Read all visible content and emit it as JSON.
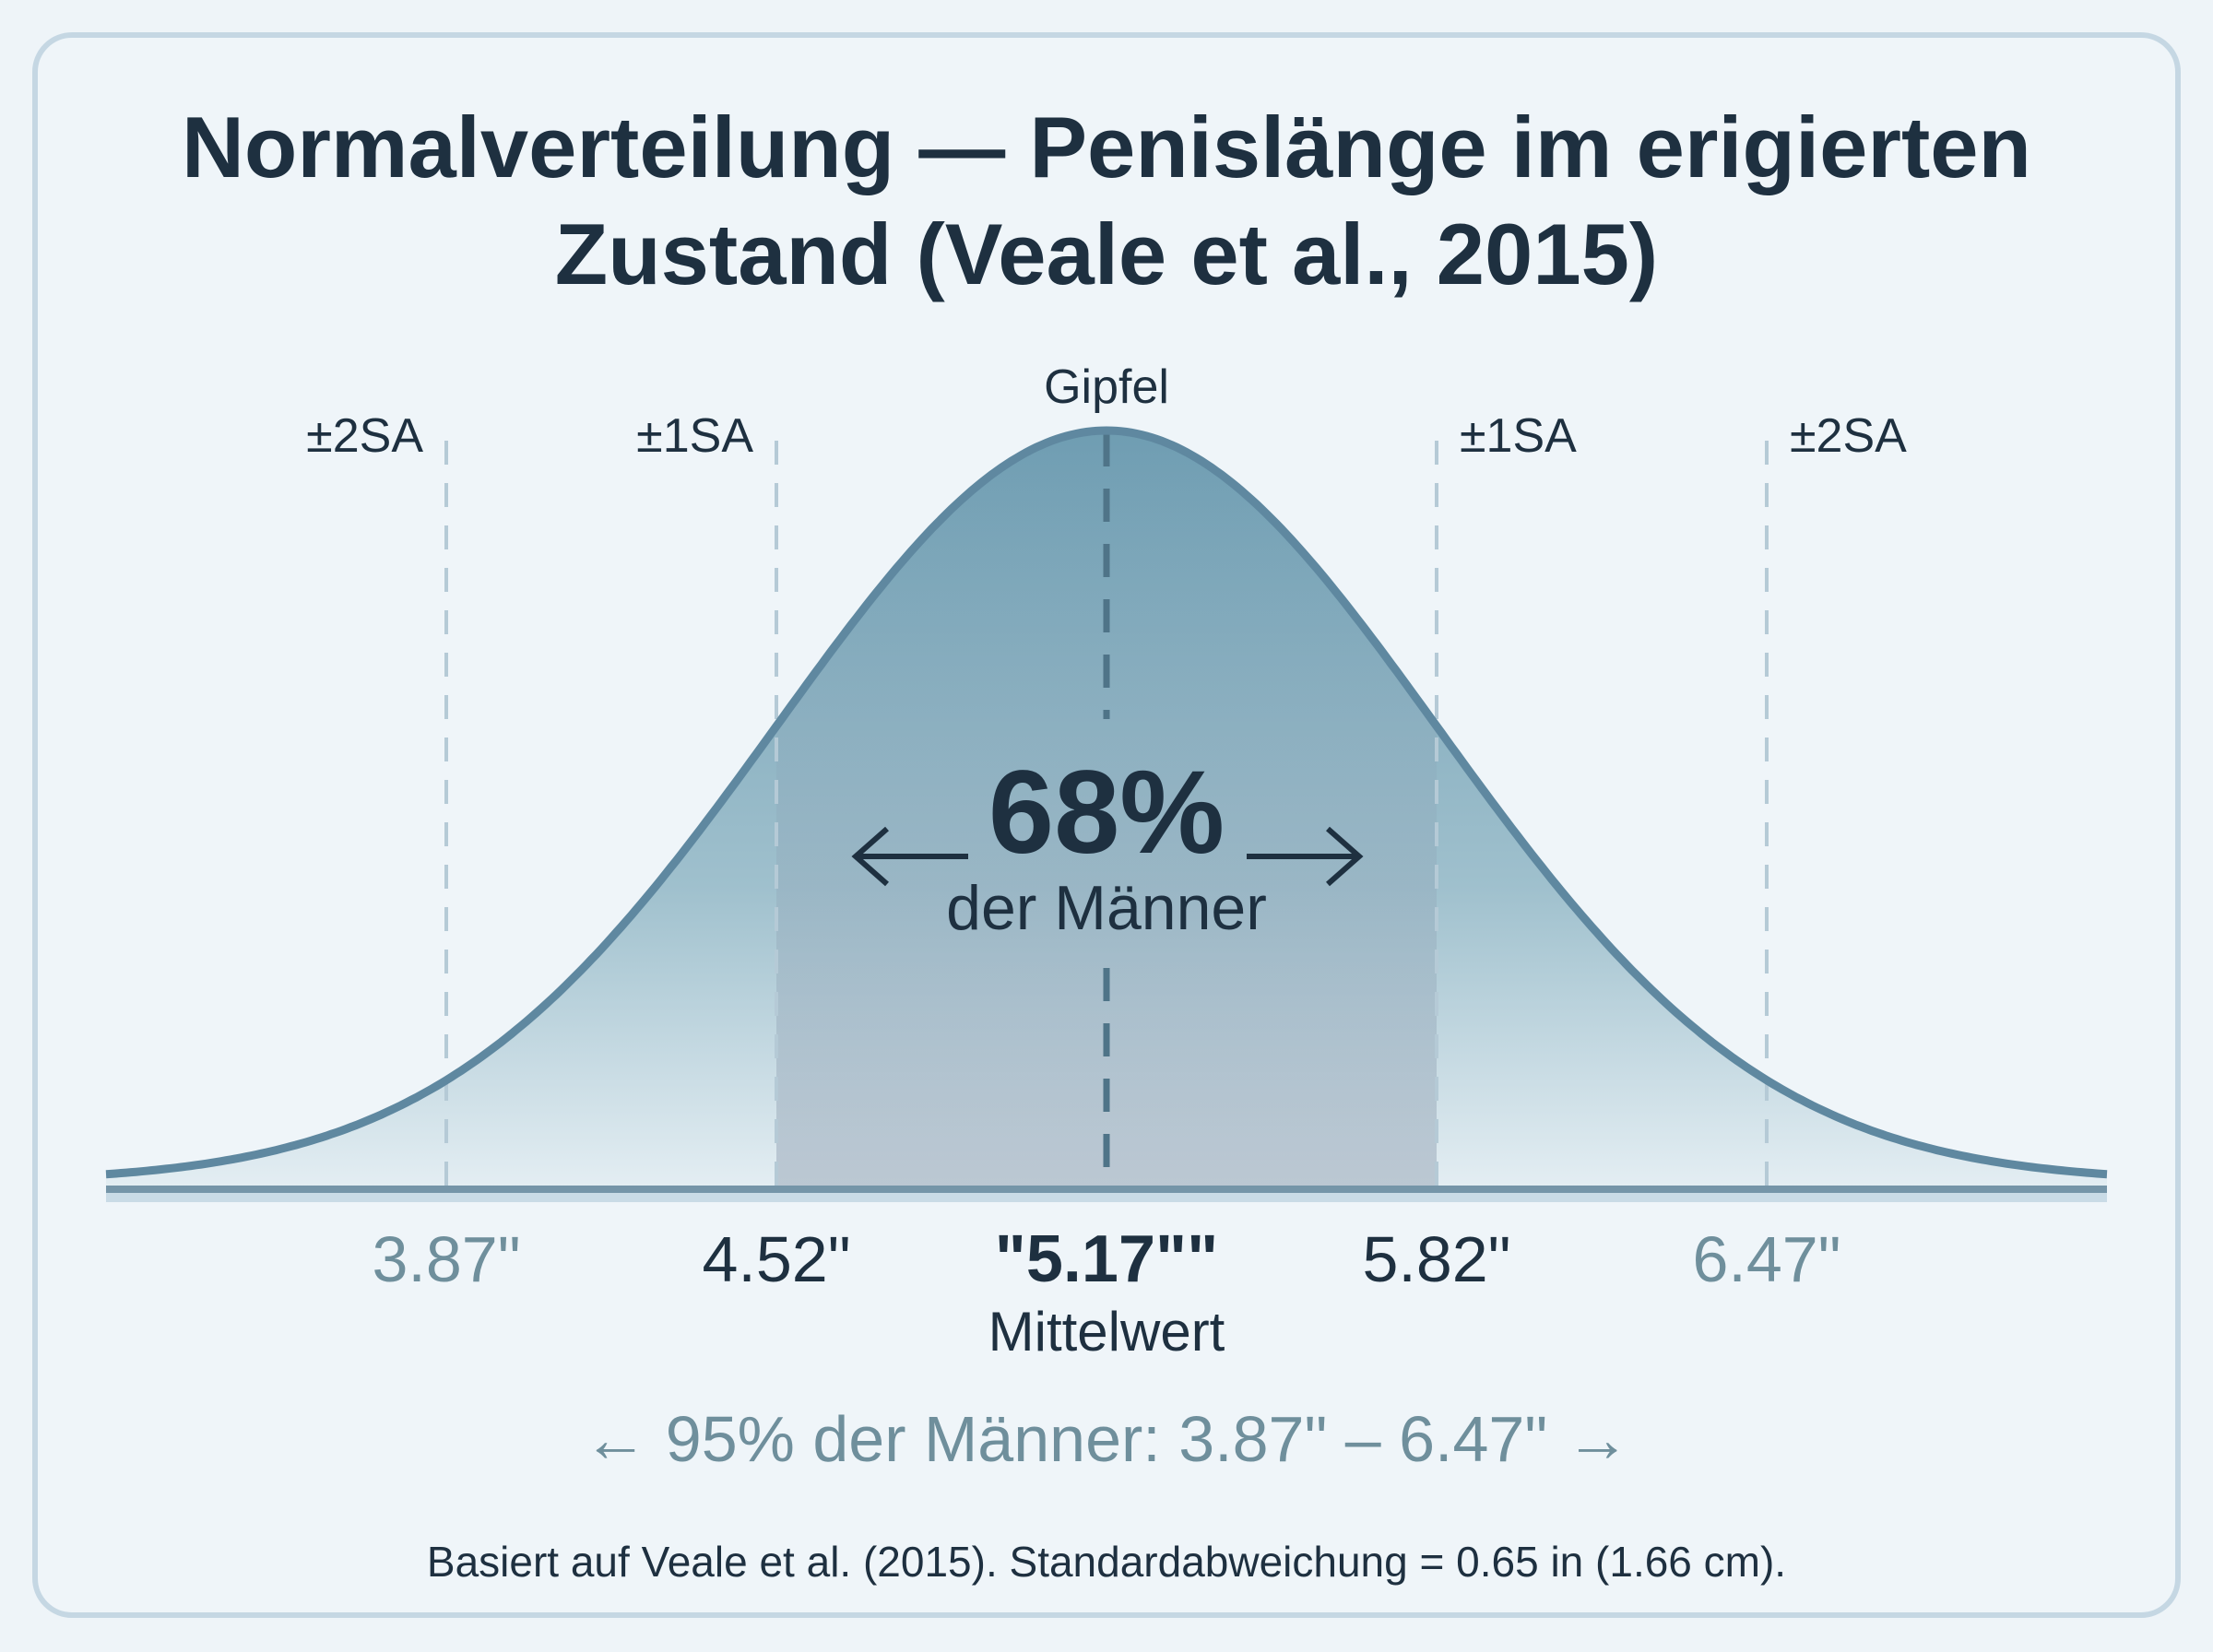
{
  "chart_data": {
    "type": "area",
    "title_line1": "Normalverteilung — Penislänge im erigierten",
    "title_line2": "Zustand (Veale et al., 2015)",
    "distribution": "normal",
    "mean": 5.17,
    "sd": 0.65,
    "x_range": [
      3.2,
      7.14
    ],
    "peak_label": "Gipfel",
    "sd_markers": [
      {
        "label": "±2SA",
        "value": 3.87,
        "tick": "3.87\""
      },
      {
        "label": "±1SA",
        "value": 4.52,
        "tick": "4.52\""
      },
      {
        "label": "±1SA",
        "value": 5.82,
        "tick": "5.82\""
      },
      {
        "label": "±2SA",
        "value": 6.47,
        "tick": "6.47\""
      }
    ],
    "mean_tick": "\"5.17\"\"",
    "mean_label": "Mittelwert",
    "center_percent": "68%",
    "center_caption": "der Männer",
    "range_note": "← 95% der Männer: 3.87\" – 6.47\" →",
    "footnote": "Basiert auf Veale et al. (2015). Standardabweichung = 0.65 in (1.66 cm).",
    "colors": {
      "curve": "#5f88a0",
      "fill_top": "#6f9db2",
      "fill_bottom": "#e4eef3",
      "text_dark": "#1e3040",
      "text_muted": "#6f8f9c",
      "card_border": "#c5d7e3"
    }
  }
}
